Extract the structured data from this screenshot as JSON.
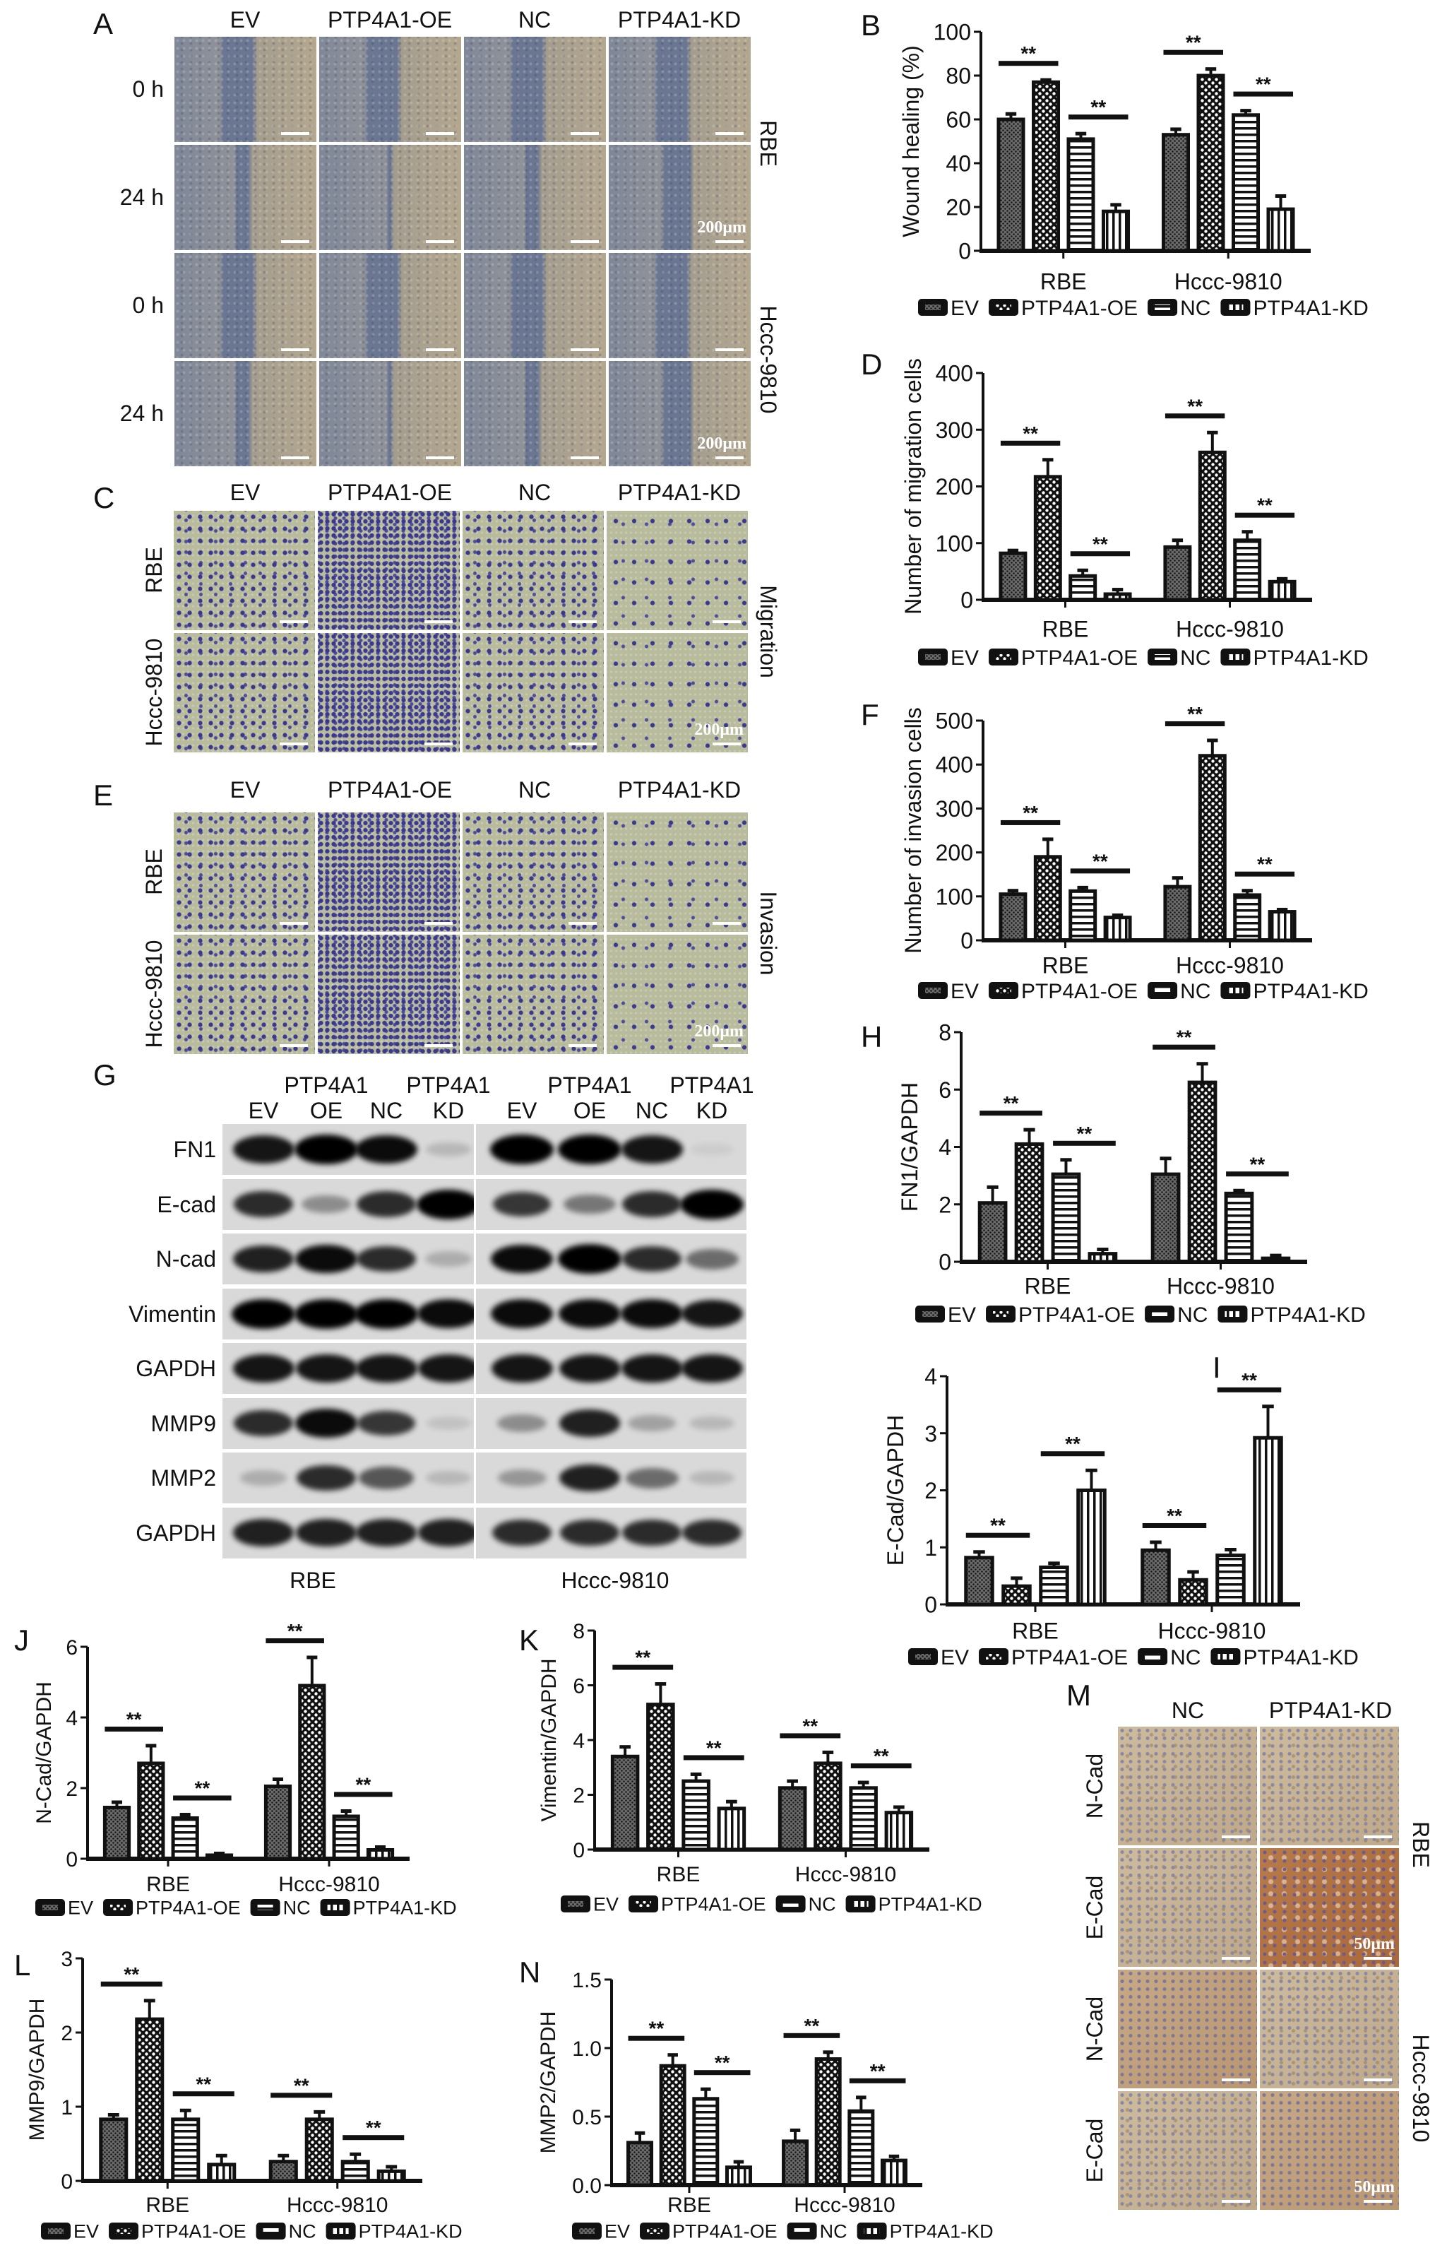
{
  "panel_A": {
    "label": "A",
    "columns": [
      "EV",
      "PTP4A1-OE",
      "NC",
      "PTP4A1-KD"
    ],
    "rows": [
      "0 h",
      "24 h",
      "0 h",
      "24 h"
    ],
    "side_labels": [
      "RBE",
      "Hccc-9810"
    ],
    "scale_bar": "200μm"
  },
  "panel_C": {
    "label": "C",
    "columns": [
      "EV",
      "PTP4A1-OE",
      "NC",
      "PTP4A1-KD"
    ],
    "rows": [
      "RBE",
      "Hccc-9810"
    ],
    "side_label": "Migration",
    "scale_bar": "200μm"
  },
  "panel_E": {
    "label": "E",
    "columns": [
      "EV",
      "PTP4A1-OE",
      "NC",
      "PTP4A1-KD"
    ],
    "rows": [
      "RBE",
      "Hccc-9810"
    ],
    "side_label": "Invasion",
    "scale_bar": "200μm"
  },
  "panel_G": {
    "label": "G",
    "header_top": [
      "PTP4A1",
      "PTP4A1",
      "PTP4A1",
      "PTP4A1"
    ],
    "lanes": [
      "EV",
      "OE",
      "NC",
      "KD",
      "EV",
      "OE",
      "NC",
      "KD"
    ],
    "proteins": [
      "FN1",
      "E-cad",
      "N-cad",
      "Vimentin",
      "GAPDH",
      "MMP9",
      "MMP2",
      "GAPDH"
    ],
    "cell_lines": [
      "RBE",
      "Hccc-9810"
    ],
    "band_intensity": [
      [
        0.9,
        1,
        0.95,
        0.15,
        1,
        1,
        0.9,
        0.05
      ],
      [
        0.8,
        0.35,
        0.8,
        1,
        0.75,
        0.45,
        0.8,
        1
      ],
      [
        0.85,
        0.95,
        0.8,
        0.2,
        0.95,
        1,
        0.8,
        0.5
      ],
      [
        1,
        1,
        1,
        0.95,
        0.95,
        0.95,
        0.95,
        0.9
      ],
      [
        0.9,
        0.9,
        0.9,
        0.9,
        0.9,
        0.9,
        0.9,
        0.9
      ],
      [
        0.8,
        0.95,
        0.75,
        0.1,
        0.35,
        0.85,
        0.25,
        0.15
      ],
      [
        0.2,
        0.8,
        0.6,
        0.15,
        0.3,
        0.85,
        0.5,
        0.15
      ],
      [
        0.85,
        0.85,
        0.85,
        0.85,
        0.8,
        0.8,
        0.8,
        0.8
      ]
    ]
  },
  "panel_M": {
    "label": "M",
    "columns": [
      "NC",
      "PTP4A1-KD"
    ],
    "rows": [
      "N-Cad",
      "E-Cad",
      "N-Cad",
      "E-Cad"
    ],
    "side_labels": [
      "RBE",
      "Hccc-9810"
    ],
    "scale_bar": "50μm"
  },
  "chart_data": [
    {
      "panel": "B",
      "type": "bar",
      "ylabel": "Wound healing (%)",
      "categories": [
        "RBE",
        "Hccc-9810"
      ],
      "ylim": [
        0,
        100
      ],
      "ytick_labels": [
        "0",
        "20",
        "40",
        "60",
        "80",
        "100"
      ],
      "significance_label": "**",
      "significance_pairs": [
        [
          "EV",
          "PTP4A1-OE"
        ],
        [
          "NC",
          "PTP4A1-KD"
        ]
      ],
      "series": [
        {
          "name": "EV",
          "values": [
            60,
            53
          ],
          "errors": [
            2.5,
            2.5
          ]
        },
        {
          "name": "PTP4A1-OE",
          "values": [
            77,
            80
          ],
          "errors": [
            1,
            3
          ]
        },
        {
          "name": "NC",
          "values": [
            51,
            62
          ],
          "errors": [
            2.5,
            2
          ]
        },
        {
          "name": "PTP4A1-KD",
          "values": [
            18,
            19
          ],
          "errors": [
            3,
            6
          ]
        }
      ]
    },
    {
      "panel": "D",
      "type": "bar",
      "ylabel": "Number of migration cells",
      "categories": [
        "RBE",
        "Hccc-9810"
      ],
      "ylim": [
        0,
        400
      ],
      "ytick_labels": [
        "0",
        "100",
        "200",
        "300",
        "400"
      ],
      "significance_label": "**",
      "significance_pairs": [
        [
          "EV",
          "PTP4A1-OE"
        ],
        [
          "NC",
          "PTP4A1-KD"
        ]
      ],
      "series": [
        {
          "name": "EV",
          "values": [
            82,
            93
          ],
          "errors": [
            5,
            12
          ]
        },
        {
          "name": "PTP4A1-OE",
          "values": [
            217,
            260
          ],
          "errors": [
            30,
            35
          ]
        },
        {
          "name": "NC",
          "values": [
            42,
            105
          ],
          "errors": [
            10,
            15
          ]
        },
        {
          "name": "PTP4A1-KD",
          "values": [
            10,
            32
          ],
          "errors": [
            8,
            5
          ]
        }
      ]
    },
    {
      "panel": "F",
      "type": "bar",
      "ylabel": "Number of invasion cells",
      "categories": [
        "RBE",
        "Hccc-9810"
      ],
      "ylim": [
        0,
        500
      ],
      "ytick_labels": [
        "0",
        "100",
        "200",
        "300",
        "400",
        "500"
      ],
      "significance_label": "**",
      "significance_pairs": [
        [
          "EV",
          "PTP4A1-OE"
        ],
        [
          "NC",
          "PTP4A1-KD"
        ]
      ],
      "series": [
        {
          "name": "EV",
          "values": [
            105,
            122
          ],
          "errors": [
            8,
            20
          ]
        },
        {
          "name": "PTP4A1-OE",
          "values": [
            190,
            420
          ],
          "errors": [
            40,
            35
          ]
        },
        {
          "name": "NC",
          "values": [
            112,
            103
          ],
          "errors": [
            8,
            10
          ]
        },
        {
          "name": "PTP4A1-KD",
          "values": [
            52,
            65
          ],
          "errors": [
            5,
            5
          ]
        }
      ]
    },
    {
      "panel": "H",
      "type": "bar",
      "ylabel": "FN1/GAPDH",
      "categories": [
        "RBE",
        "Hccc-9810"
      ],
      "ylim": [
        0,
        8
      ],
      "ytick_labels": [
        "0",
        "2",
        "4",
        "6",
        "8"
      ],
      "significance_label": "**",
      "significance_pairs": [
        [
          "EV",
          "PTP4A1-OE"
        ],
        [
          "NC",
          "PTP4A1-KD"
        ]
      ],
      "series": [
        {
          "name": "EV",
          "values": [
            2.05,
            3.05
          ],
          "errors": [
            0.55,
            0.55
          ]
        },
        {
          "name": "PTP4A1-OE",
          "values": [
            4.1,
            6.25
          ],
          "errors": [
            0.5,
            0.65
          ]
        },
        {
          "name": "NC",
          "values": [
            3.05,
            2.38
          ],
          "errors": [
            0.5,
            0.1
          ]
        },
        {
          "name": "PTP4A1-KD",
          "values": [
            0.28,
            0.12
          ],
          "errors": [
            0.15,
            0.1
          ]
        }
      ]
    },
    {
      "panel": "I",
      "type": "bar",
      "ylabel": "E-Cad/GAPDH",
      "categories": [
        "RBE",
        "Hccc-9810"
      ],
      "ylim": [
        0,
        4
      ],
      "ytick_labels": [
        "0",
        "1",
        "2",
        "3",
        "4"
      ],
      "significance_label": "**",
      "significance_pairs": [
        [
          "EV",
          "PTP4A1-OE"
        ],
        [
          "NC",
          "PTP4A1-KD"
        ]
      ],
      "series": [
        {
          "name": "EV",
          "values": [
            0.82,
            0.95
          ],
          "errors": [
            0.1,
            0.14
          ]
        },
        {
          "name": "PTP4A1-OE",
          "values": [
            0.32,
            0.43
          ],
          "errors": [
            0.14,
            0.14
          ]
        },
        {
          "name": "NC",
          "values": [
            0.65,
            0.86
          ],
          "errors": [
            0.07,
            0.1
          ]
        },
        {
          "name": "PTP4A1-KD",
          "values": [
            2.0,
            2.92
          ],
          "errors": [
            0.35,
            0.55
          ]
        }
      ]
    },
    {
      "panel": "J",
      "type": "bar",
      "ylabel": "N-Cad/GAPDH",
      "categories": [
        "RBE",
        "Hccc-9810"
      ],
      "ylim": [
        0,
        6
      ],
      "ytick_labels": [
        "0",
        "2",
        "4",
        "6"
      ],
      "significance_label": "**",
      "significance_pairs": [
        [
          "EV",
          "PTP4A1-OE"
        ],
        [
          "NC",
          "PTP4A1-KD"
        ]
      ],
      "series": [
        {
          "name": "EV",
          "values": [
            1.45,
            2.05
          ],
          "errors": [
            0.15,
            0.2
          ]
        },
        {
          "name": "PTP4A1-OE",
          "values": [
            2.7,
            4.9
          ],
          "errors": [
            0.5,
            0.8
          ]
        },
        {
          "name": "NC",
          "values": [
            1.15,
            1.2
          ],
          "errors": [
            0.1,
            0.15
          ]
        },
        {
          "name": "PTP4A1-KD",
          "values": [
            0.1,
            0.25
          ],
          "errors": [
            0.05,
            0.08
          ]
        }
      ]
    },
    {
      "panel": "K",
      "type": "bar",
      "ylabel": "Vimentin/GAPDH",
      "categories": [
        "RBE",
        "Hccc-9810"
      ],
      "ylim": [
        0,
        8
      ],
      "ytick_labels": [
        "0",
        "2",
        "4",
        "6",
        "8"
      ],
      "significance_label": "**",
      "significance_pairs": [
        [
          "EV",
          "PTP4A1-OE"
        ],
        [
          "NC",
          "PTP4A1-KD"
        ]
      ],
      "series": [
        {
          "name": "EV",
          "values": [
            3.4,
            2.25
          ],
          "errors": [
            0.35,
            0.25
          ]
        },
        {
          "name": "PTP4A1-OE",
          "values": [
            5.3,
            3.15
          ],
          "errors": [
            0.75,
            0.4
          ]
        },
        {
          "name": "NC",
          "values": [
            2.5,
            2.25
          ],
          "errors": [
            0.25,
            0.2
          ]
        },
        {
          "name": "PTP4A1-KD",
          "values": [
            1.5,
            1.35
          ],
          "errors": [
            0.25,
            0.2
          ]
        }
      ]
    },
    {
      "panel": "L",
      "type": "bar",
      "ylabel": "MMP9/GAPDH",
      "categories": [
        "RBE",
        "Hccc-9810"
      ],
      "ylim": [
        0,
        3
      ],
      "ytick_labels": [
        "0",
        "1",
        "2",
        "3"
      ],
      "significance_label": "**",
      "significance_pairs": [
        [
          "EV",
          "PTP4A1-OE"
        ],
        [
          "NC",
          "PTP4A1-KD"
        ]
      ],
      "series": [
        {
          "name": "EV",
          "values": [
            0.83,
            0.26
          ],
          "errors": [
            0.06,
            0.08
          ]
        },
        {
          "name": "PTP4A1-OE",
          "values": [
            2.18,
            0.83
          ],
          "errors": [
            0.25,
            0.1
          ]
        },
        {
          "name": "NC",
          "values": [
            0.83,
            0.26
          ],
          "errors": [
            0.12,
            0.1
          ]
        },
        {
          "name": "PTP4A1-KD",
          "values": [
            0.22,
            0.13
          ],
          "errors": [
            0.12,
            0.06
          ]
        }
      ]
    },
    {
      "panel": "N",
      "type": "bar",
      "ylabel": "MMP2/GAPDH",
      "categories": [
        "RBE",
        "Hccc-9810"
      ],
      "ylim": [
        0,
        1.5
      ],
      "ytick_labels": [
        "0.0",
        "0.5",
        "1.0",
        "1.5"
      ],
      "significance_label": "**",
      "significance_pairs": [
        [
          "EV",
          "PTP4A1-OE"
        ],
        [
          "NC",
          "PTP4A1-KD"
        ]
      ],
      "series": [
        {
          "name": "EV",
          "values": [
            0.31,
            0.32
          ],
          "errors": [
            0.07,
            0.08
          ]
        },
        {
          "name": "PTP4A1-OE",
          "values": [
            0.87,
            0.92
          ],
          "errors": [
            0.08,
            0.05
          ]
        },
        {
          "name": "NC",
          "values": [
            0.63,
            0.54
          ],
          "errors": [
            0.07,
            0.1
          ]
        },
        {
          "name": "PTP4A1-KD",
          "values": [
            0.13,
            0.18
          ],
          "errors": [
            0.04,
            0.03
          ]
        }
      ]
    }
  ]
}
